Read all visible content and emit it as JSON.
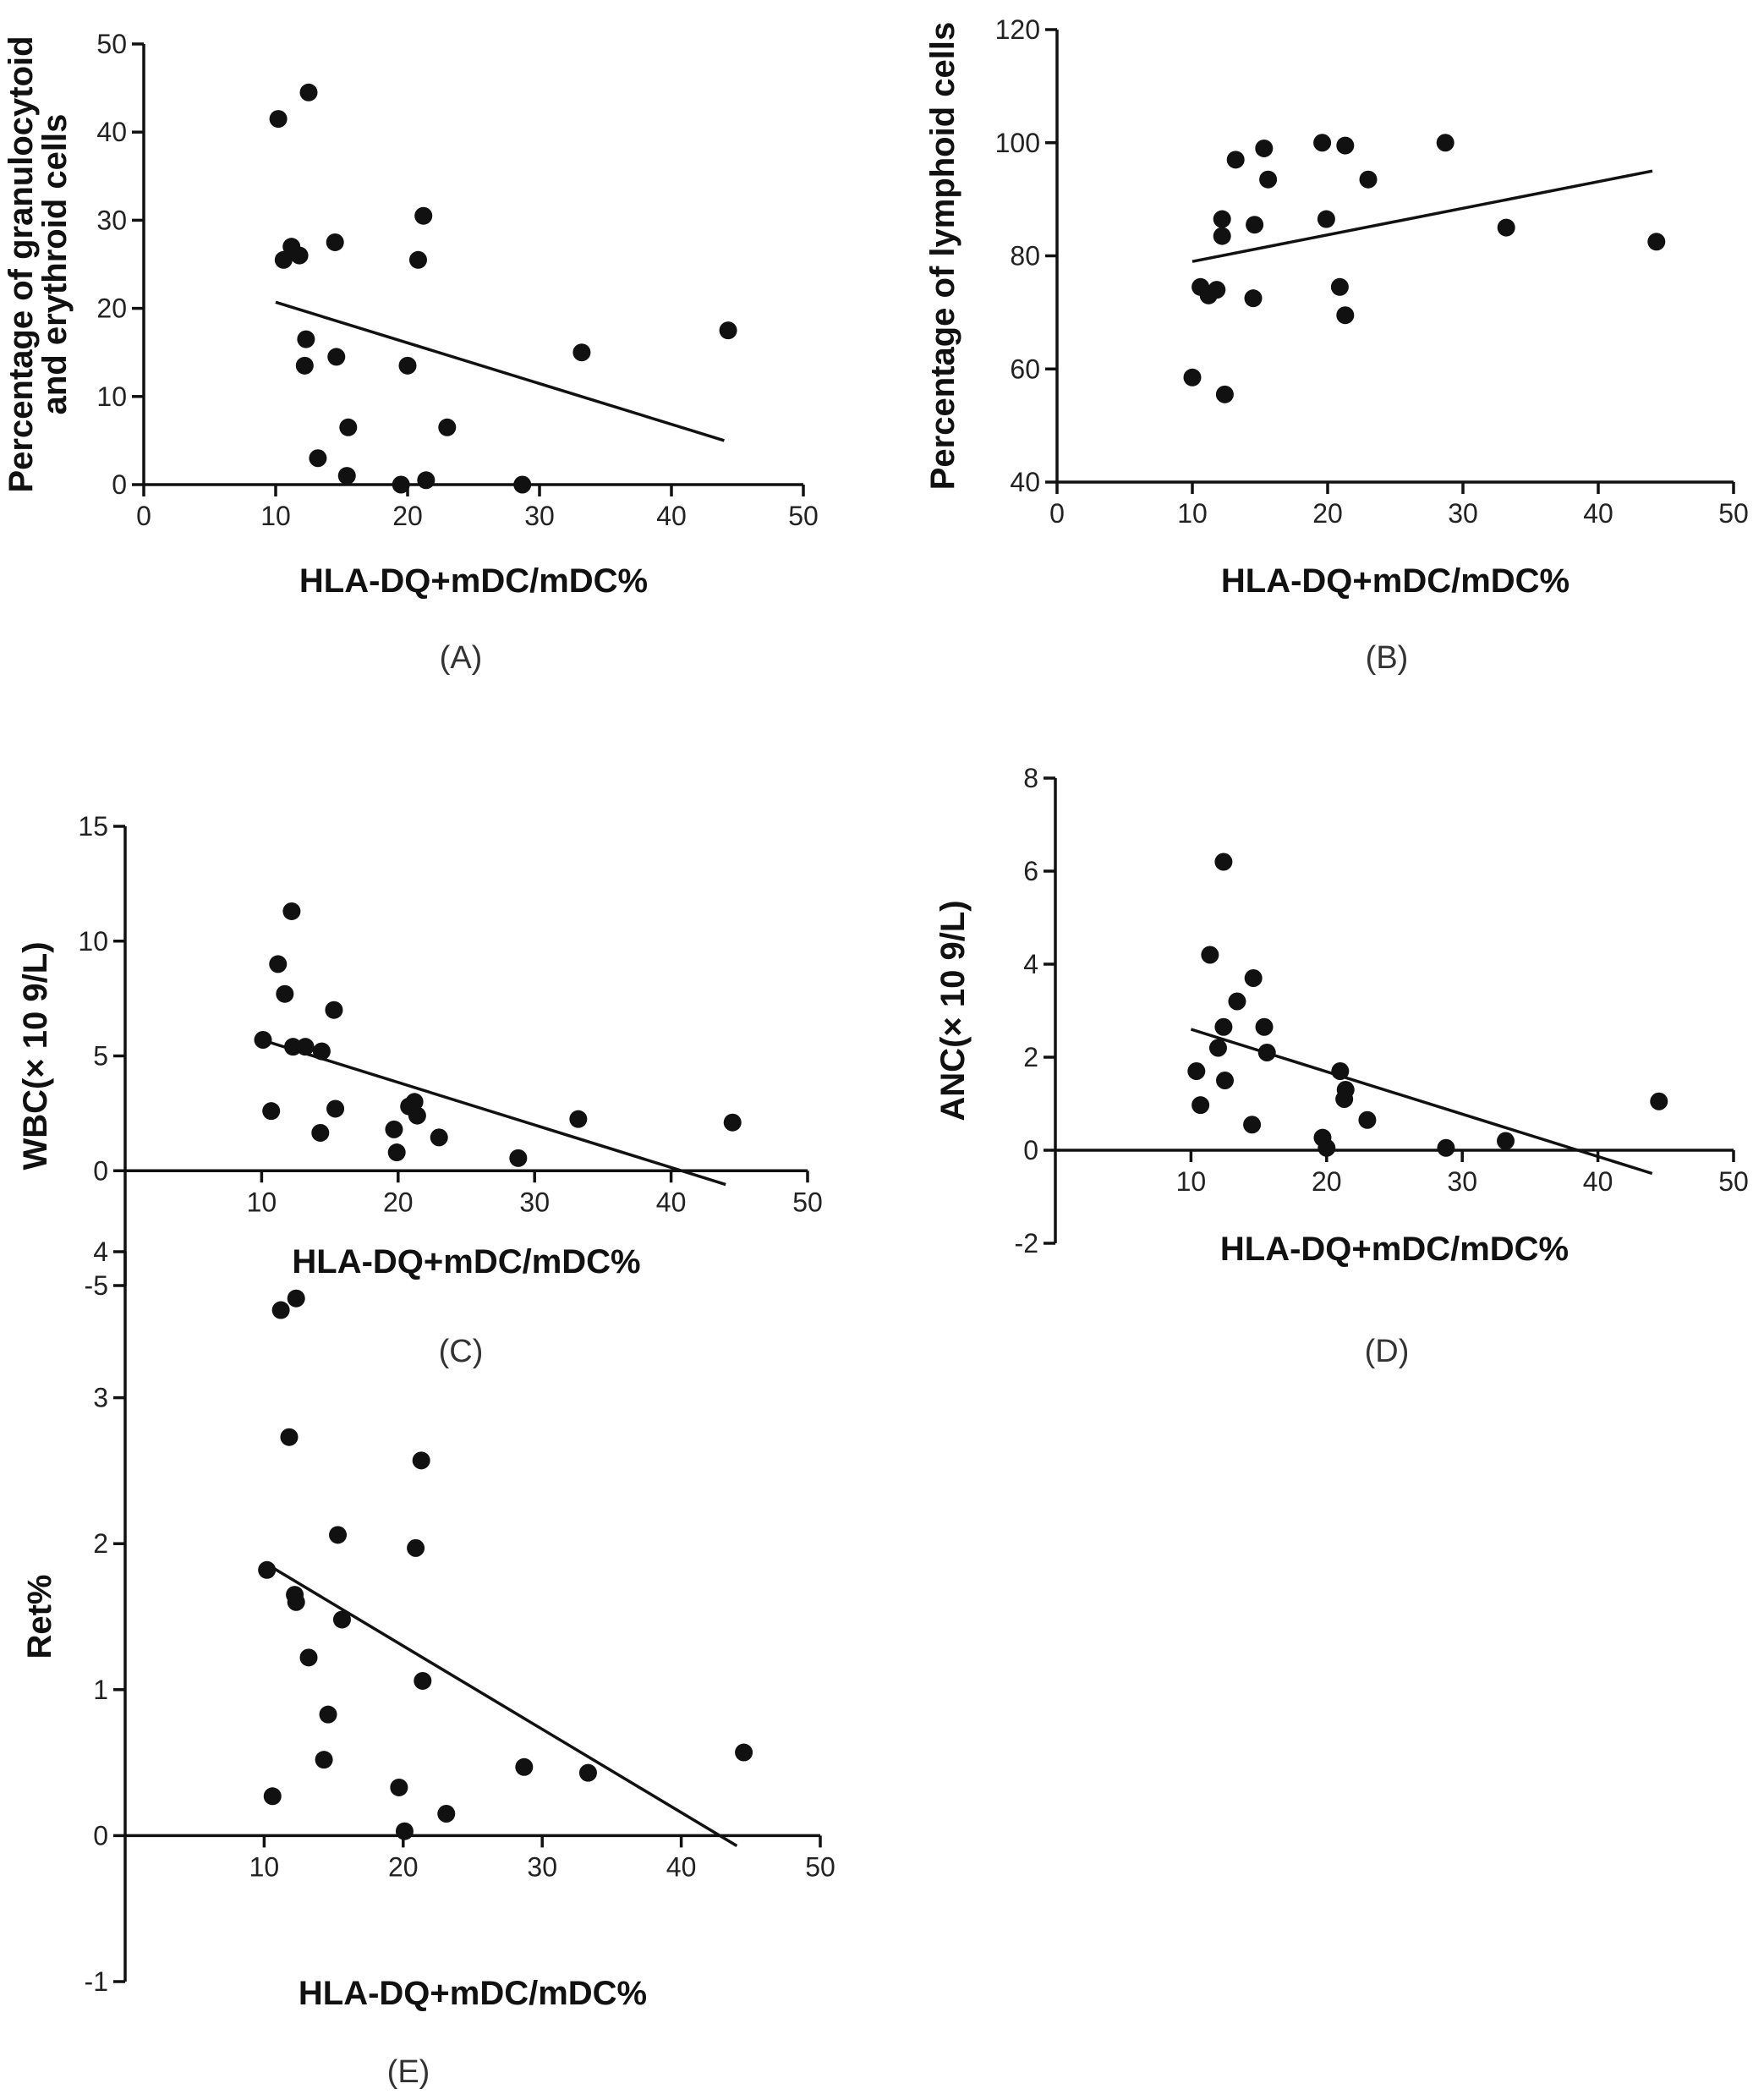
{
  "chart_data": [
    {
      "panel": "(A)",
      "type": "scatter",
      "xlabel": "HLA-DQ+mDC/mDC%",
      "ylabel": [
        "Percentage of granulocytoid",
        "and erythroid cells"
      ],
      "xlim": [
        0,
        50
      ],
      "ylim": [
        0,
        50
      ],
      "xticks": [
        0,
        10,
        20,
        30,
        40,
        50
      ],
      "yticks": [
        0,
        10,
        20,
        30,
        40,
        50
      ],
      "points": [
        [
          10.2,
          41.5
        ],
        [
          12.5,
          44.5
        ],
        [
          10.6,
          25.5
        ],
        [
          11.2,
          27.0
        ],
        [
          11.8,
          26.0
        ],
        [
          12.3,
          16.5
        ],
        [
          12.2,
          13.5
        ],
        [
          13.2,
          3.0
        ],
        [
          14.5,
          27.5
        ],
        [
          14.6,
          14.5
        ],
        [
          15.5,
          6.5
        ],
        [
          15.4,
          1.0
        ],
        [
          19.5,
          0.0
        ],
        [
          20.0,
          13.5
        ],
        [
          20.8,
          25.5
        ],
        [
          21.2,
          30.5
        ],
        [
          21.4,
          0.5
        ],
        [
          23.0,
          6.5
        ],
        [
          28.7,
          0.0
        ],
        [
          33.2,
          15.0
        ],
        [
          44.3,
          17.5
        ]
      ],
      "fit": [
        [
          10.0,
          20.7
        ],
        [
          44.0,
          5.0
        ]
      ]
    },
    {
      "panel": "(B)",
      "type": "scatter",
      "xlabel": "HLA-DQ+mDC/mDC%",
      "ylabel": [
        "Percentage of lymphoid cells"
      ],
      "xlim": [
        0,
        50
      ],
      "ylim": [
        40,
        120
      ],
      "xticks": [
        0,
        10,
        20,
        30,
        40,
        50
      ],
      "yticks": [
        40,
        60,
        80,
        100,
        120
      ],
      "points": [
        [
          10.0,
          58.5
        ],
        [
          10.6,
          74.5
        ],
        [
          11.2,
          73.0
        ],
        [
          11.8,
          74.0
        ],
        [
          12.2,
          86.5
        ],
        [
          12.2,
          83.5
        ],
        [
          12.4,
          55.5
        ],
        [
          13.2,
          97.0
        ],
        [
          14.5,
          72.5
        ],
        [
          14.6,
          85.5
        ],
        [
          15.3,
          99.0
        ],
        [
          15.6,
          93.5
        ],
        [
          19.6,
          100.0
        ],
        [
          19.9,
          86.5
        ],
        [
          20.9,
          74.5
        ],
        [
          21.3,
          99.5
        ],
        [
          21.3,
          69.5
        ],
        [
          23.0,
          93.5
        ],
        [
          28.7,
          100.0
        ],
        [
          33.2,
          85.0
        ],
        [
          44.3,
          82.5
        ]
      ],
      "fit": [
        [
          10.0,
          79.0
        ],
        [
          44.0,
          95.0
        ]
      ]
    },
    {
      "panel": "(C)",
      "type": "scatter",
      "xlabel": "HLA-DQ+mDC/mDC%",
      "ylabel": [
        "WBC(× 10 9/L)"
      ],
      "xlim": [
        0,
        50
      ],
      "ylim": [
        -5,
        15
      ],
      "xticks": [
        10,
        20,
        30,
        40,
        50
      ],
      "yticks": [
        -5,
        0,
        5,
        10,
        15
      ],
      "points": [
        [
          10.1,
          5.7
        ],
        [
          10.7,
          2.6
        ],
        [
          11.2,
          9.0
        ],
        [
          11.7,
          7.7
        ],
        [
          12.2,
          11.3
        ],
        [
          12.3,
          5.4
        ],
        [
          13.2,
          5.4
        ],
        [
          14.3,
          1.65
        ],
        [
          14.4,
          5.2
        ],
        [
          15.3,
          7.0
        ],
        [
          15.4,
          2.7
        ],
        [
          19.7,
          1.8
        ],
        [
          19.9,
          0.8
        ],
        [
          20.8,
          2.8
        ],
        [
          21.2,
          3.0
        ],
        [
          21.4,
          2.4
        ],
        [
          23.0,
          1.45
        ],
        [
          28.8,
          0.55
        ],
        [
          33.2,
          2.25
        ],
        [
          44.5,
          2.1
        ]
      ],
      "fit": [
        [
          10.0,
          5.7
        ],
        [
          44.0,
          -0.6
        ]
      ]
    },
    {
      "panel": "(D)",
      "type": "scatter",
      "xlabel": "HLA-DQ+mDC/mDC%",
      "ylabel": [
        "ANC(× 10 9/L)"
      ],
      "xlim": [
        0,
        50
      ],
      "ylim": [
        -2,
        8
      ],
      "xticks": [
        10,
        20,
        30,
        40,
        50
      ],
      "yticks": [
        -2,
        0,
        2,
        4,
        6,
        8
      ],
      "points": [
        [
          10.4,
          1.7
        ],
        [
          10.7,
          0.97
        ],
        [
          11.4,
          4.2
        ],
        [
          12.0,
          2.2
        ],
        [
          12.4,
          6.2
        ],
        [
          12.4,
          2.65
        ],
        [
          12.5,
          1.5
        ],
        [
          13.4,
          3.2
        ],
        [
          14.5,
          0.55
        ],
        [
          14.6,
          3.7
        ],
        [
          15.4,
          2.65
        ],
        [
          15.6,
          2.1
        ],
        [
          19.7,
          0.27
        ],
        [
          20.0,
          0.05
        ],
        [
          21.0,
          1.7
        ],
        [
          21.3,
          1.1
        ],
        [
          21.4,
          1.3
        ],
        [
          23.0,
          0.65
        ],
        [
          28.8,
          0.05
        ],
        [
          33.2,
          0.2
        ],
        [
          44.5,
          1.05
        ]
      ],
      "fit": [
        [
          10.0,
          2.6
        ],
        [
          44.0,
          -0.5
        ]
      ]
    },
    {
      "panel": "(E)",
      "type": "scatter",
      "xlabel": "HLA-DQ+mDC/mDC%",
      "ylabel": [
        "Ret%"
      ],
      "xlim": [
        0,
        50
      ],
      "ylim": [
        -1,
        4
      ],
      "xticks": [
        10,
        20,
        30,
        40,
        50
      ],
      "yticks": [
        -1,
        0,
        1,
        2,
        3,
        4
      ],
      "points": [
        [
          10.2,
          1.82
        ],
        [
          10.6,
          0.27
        ],
        [
          11.2,
          3.6
        ],
        [
          11.8,
          2.73
        ],
        [
          12.2,
          1.65
        ],
        [
          12.3,
          3.68
        ],
        [
          12.3,
          1.6
        ],
        [
          13.2,
          1.22
        ],
        [
          14.3,
          0.52
        ],
        [
          14.6,
          0.83
        ],
        [
          15.3,
          2.06
        ],
        [
          15.6,
          1.48
        ],
        [
          19.7,
          0.33
        ],
        [
          20.1,
          0.03
        ],
        [
          20.9,
          1.97
        ],
        [
          21.3,
          2.57
        ],
        [
          21.4,
          1.06
        ],
        [
          23.1,
          0.15
        ],
        [
          28.7,
          0.47
        ],
        [
          33.3,
          0.43
        ],
        [
          44.5,
          0.57
        ]
      ],
      "fit": [
        [
          10.0,
          1.87
        ],
        [
          44.0,
          -0.07
        ]
      ]
    }
  ]
}
